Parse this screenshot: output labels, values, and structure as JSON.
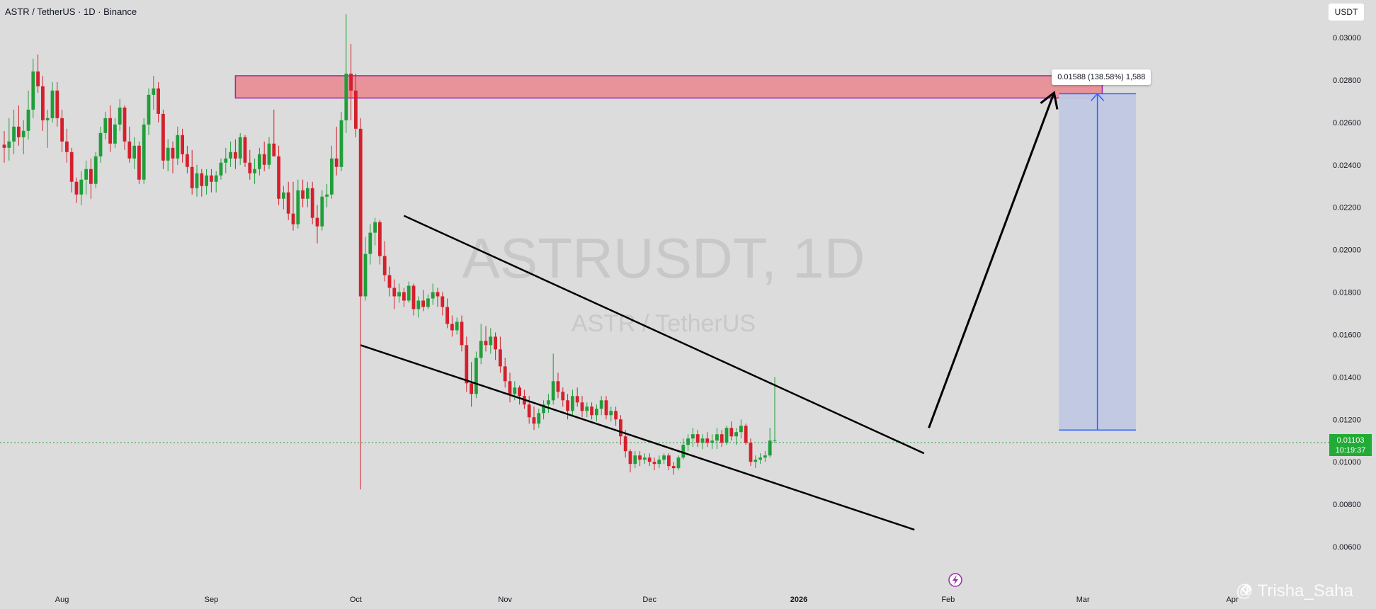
{
  "header": {
    "title": "ASTR / TetherUS · 1D · Binance",
    "unit": "USDT"
  },
  "watermark": {
    "symbol": "ASTRUSDT, 1D",
    "pair": "ASTR / TetherUS"
  },
  "author": "@ Trisha_Saha",
  "last_price": {
    "value": "0.01103",
    "countdown": "10:19:37"
  },
  "colors": {
    "up": "#1f9e3a",
    "down": "#d4202c",
    "zone_fill": "#e8939a",
    "zone_border": "#9c27b0",
    "measure_fill": "#c0c8e3",
    "measure_line": "#2962ff",
    "background": "#dcdcdc"
  },
  "icons": {
    "bolt": "lightning-icon",
    "author": "tradingview-logo-icon"
  },
  "chart_data": {
    "type": "candlestick",
    "title": "ASTR / TetherUS · 1D · Binance",
    "y_axis_unit": "USDT",
    "ylim": [
      0.0055,
      0.031
    ],
    "y_ticks": [
      "0.03000",
      "0.02800",
      "0.02600",
      "0.02400",
      "0.02200",
      "0.02000",
      "0.01800",
      "0.01600",
      "0.01400",
      "0.01200",
      "0.01000",
      "0.00800",
      "0.00600"
    ],
    "x_ticks": [
      {
        "label": "Aug",
        "date": "2025-08-01"
      },
      {
        "label": "Sep",
        "date": "2025-09-01"
      },
      {
        "label": "Oct",
        "date": "2025-10-01"
      },
      {
        "label": "Nov",
        "date": "2025-11-01"
      },
      {
        "label": "Dec",
        "date": "2025-12-01"
      },
      {
        "label": "2026",
        "date": "2026-01-01"
      },
      {
        "label": "Feb",
        "date": "2026-02-01"
      },
      {
        "label": "Mar",
        "date": "2026-03-01"
      },
      {
        "label": "Apr",
        "date": "2026-04-01"
      }
    ],
    "first_date": "2025-07-20",
    "last_price": 0.01103,
    "resistance_zone": {
      "from_date": "2025-09-06",
      "to_date": "2026-03-05",
      "low": 0.02715,
      "high": 0.0282
    },
    "falling_channel": {
      "upper": [
        {
          "date": "2025-10-11",
          "price": 0.0216
        },
        {
          "date": "2026-01-27",
          "price": 0.0104
        }
      ],
      "lower": [
        {
          "date": "2025-10-02",
          "price": 0.0155
        },
        {
          "date": "2026-01-25",
          "price": 0.0068
        }
      ]
    },
    "projection_arrow": {
      "from": {
        "date": "2026-01-28",
        "price": 0.0116
      },
      "to": {
        "date": "2026-02-23",
        "price": 0.0274
      }
    },
    "measure": {
      "from_date": "2026-02-24",
      "to_date": "2026-03-12",
      "low": 0.0115,
      "high": 0.02735,
      "label": "0.01588 (138.58%) 1,588"
    },
    "candles": [
      [
        0.02495,
        0.0256,
        0.0241,
        0.0248
      ],
      [
        0.0248,
        0.0262,
        0.0242,
        0.0251
      ],
      [
        0.0251,
        0.0266,
        0.0245,
        0.0258
      ],
      [
        0.0258,
        0.0268,
        0.0249,
        0.0253
      ],
      [
        0.0253,
        0.0261,
        0.0245,
        0.0256
      ],
      [
        0.0256,
        0.0275,
        0.0252,
        0.0266
      ],
      [
        0.0266,
        0.029,
        0.0262,
        0.0284
      ],
      [
        0.0284,
        0.0292,
        0.0274,
        0.0277
      ],
      [
        0.0277,
        0.0282,
        0.0256,
        0.0261
      ],
      [
        0.0261,
        0.0266,
        0.0248,
        0.0262
      ],
      [
        0.0262,
        0.0279,
        0.026,
        0.0275
      ],
      [
        0.0275,
        0.0279,
        0.0258,
        0.0262
      ],
      [
        0.0262,
        0.0266,
        0.0246,
        0.0251
      ],
      [
        0.0251,
        0.0257,
        0.0241,
        0.0246
      ],
      [
        0.0246,
        0.0248,
        0.0227,
        0.0232
      ],
      [
        0.0232,
        0.0234,
        0.0222,
        0.0226
      ],
      [
        0.0226,
        0.0237,
        0.0221,
        0.0233
      ],
      [
        0.0233,
        0.0242,
        0.0226,
        0.0238
      ],
      [
        0.0238,
        0.0243,
        0.0224,
        0.0231
      ],
      [
        0.0231,
        0.0246,
        0.0229,
        0.0244
      ],
      [
        0.0244,
        0.0258,
        0.0241,
        0.0255
      ],
      [
        0.0255,
        0.0265,
        0.0252,
        0.0262
      ],
      [
        0.0262,
        0.0268,
        0.0246,
        0.025
      ],
      [
        0.025,
        0.0262,
        0.0248,
        0.0259
      ],
      [
        0.0259,
        0.0271,
        0.0256,
        0.0267
      ],
      [
        0.0267,
        0.0268,
        0.0247,
        0.0251
      ],
      [
        0.0251,
        0.0258,
        0.0241,
        0.0243
      ],
      [
        0.0243,
        0.0253,
        0.0238,
        0.0249
      ],
      [
        0.0249,
        0.0251,
        0.0231,
        0.0233
      ],
      [
        0.0233,
        0.0262,
        0.0231,
        0.0259
      ],
      [
        0.0259,
        0.0276,
        0.0254,
        0.0273
      ],
      [
        0.0273,
        0.0282,
        0.0266,
        0.0276
      ],
      [
        0.0276,
        0.0279,
        0.026,
        0.0264
      ],
      [
        0.0264,
        0.0266,
        0.0238,
        0.0242
      ],
      [
        0.0242,
        0.0252,
        0.0237,
        0.0248
      ],
      [
        0.0248,
        0.0251,
        0.0236,
        0.0243
      ],
      [
        0.0243,
        0.0258,
        0.024,
        0.0254
      ],
      [
        0.0254,
        0.0257,
        0.0241,
        0.0245
      ],
      [
        0.0245,
        0.0249,
        0.0236,
        0.0239
      ],
      [
        0.0239,
        0.0247,
        0.0226,
        0.0229
      ],
      [
        0.0229,
        0.024,
        0.0225,
        0.0236
      ],
      [
        0.0236,
        0.0238,
        0.0225,
        0.023
      ],
      [
        0.023,
        0.0238,
        0.0226,
        0.0235
      ],
      [
        0.0235,
        0.0238,
        0.0227,
        0.0232
      ],
      [
        0.0232,
        0.0237,
        0.0227,
        0.0235
      ],
      [
        0.0235,
        0.0243,
        0.0233,
        0.0241
      ],
      [
        0.0241,
        0.0248,
        0.0236,
        0.0243
      ],
      [
        0.0243,
        0.0251,
        0.0239,
        0.0246
      ],
      [
        0.0246,
        0.0252,
        0.0238,
        0.0243
      ],
      [
        0.0243,
        0.0255,
        0.024,
        0.0253
      ],
      [
        0.0253,
        0.0254,
        0.0239,
        0.0241
      ],
      [
        0.0241,
        0.0247,
        0.0233,
        0.0236
      ],
      [
        0.0236,
        0.0243,
        0.0231,
        0.0238
      ],
      [
        0.0238,
        0.0248,
        0.0235,
        0.0245
      ],
      [
        0.0245,
        0.0251,
        0.0237,
        0.024
      ],
      [
        0.024,
        0.0253,
        0.0238,
        0.025
      ],
      [
        0.025,
        0.0266,
        0.0246,
        0.0244
      ],
      [
        0.0244,
        0.0249,
        0.0221,
        0.0224
      ],
      [
        0.0224,
        0.023,
        0.0219,
        0.0227
      ],
      [
        0.0227,
        0.0232,
        0.0214,
        0.0217
      ],
      [
        0.0217,
        0.0232,
        0.0209,
        0.0212
      ],
      [
        0.0212,
        0.0233,
        0.021,
        0.0228
      ],
      [
        0.0228,
        0.0233,
        0.022,
        0.0224
      ],
      [
        0.0224,
        0.0232,
        0.022,
        0.0229
      ],
      [
        0.0229,
        0.0232,
        0.0212,
        0.0215
      ],
      [
        0.0215,
        0.0221,
        0.0203,
        0.0211
      ],
      [
        0.0211,
        0.0228,
        0.0209,
        0.0225
      ],
      [
        0.0225,
        0.0231,
        0.022,
        0.0226
      ],
      [
        0.0226,
        0.0249,
        0.0224,
        0.0243
      ],
      [
        0.0243,
        0.0258,
        0.0235,
        0.0239
      ],
      [
        0.0239,
        0.0265,
        0.0237,
        0.0261
      ],
      [
        0.0261,
        0.0311,
        0.0255,
        0.0283
      ],
      [
        0.0283,
        0.0297,
        0.0261,
        0.0275
      ],
      [
        0.0275,
        0.0283,
        0.0253,
        0.0257
      ],
      [
        0.0257,
        0.0262,
        0.0087,
        0.0178
      ],
      [
        0.0178,
        0.0206,
        0.0176,
        0.0198
      ],
      [
        0.0198,
        0.0212,
        0.0193,
        0.0208
      ],
      [
        0.0208,
        0.0215,
        0.0202,
        0.0213
      ],
      [
        0.0213,
        0.0214,
        0.0193,
        0.0197
      ],
      [
        0.0197,
        0.0204,
        0.0185,
        0.0188
      ],
      [
        0.0188,
        0.0192,
        0.0178,
        0.0182
      ],
      [
        0.0182,
        0.0186,
        0.0172,
        0.0178
      ],
      [
        0.0178,
        0.0184,
        0.0175,
        0.018
      ],
      [
        0.018,
        0.0182,
        0.0173,
        0.0176
      ],
      [
        0.0176,
        0.0185,
        0.0175,
        0.0183
      ],
      [
        0.0183,
        0.0184,
        0.0169,
        0.0172
      ],
      [
        0.0172,
        0.0178,
        0.0168,
        0.0176
      ],
      [
        0.0176,
        0.0181,
        0.0171,
        0.0173
      ],
      [
        0.0173,
        0.0179,
        0.0172,
        0.0177
      ],
      [
        0.0177,
        0.0184,
        0.0174,
        0.018
      ],
      [
        0.018,
        0.0182,
        0.0173,
        0.0178
      ],
      [
        0.0178,
        0.018,
        0.0169,
        0.0173
      ],
      [
        0.0173,
        0.0177,
        0.0163,
        0.0165
      ],
      [
        0.0165,
        0.0169,
        0.0159,
        0.0162
      ],
      [
        0.0162,
        0.0168,
        0.016,
        0.0166
      ],
      [
        0.0166,
        0.0169,
        0.0152,
        0.0155
      ],
      [
        0.0155,
        0.0159,
        0.0133,
        0.0137
      ],
      [
        0.0137,
        0.0147,
        0.0126,
        0.0132
      ],
      [
        0.0132,
        0.0152,
        0.013,
        0.0149
      ],
      [
        0.0149,
        0.0165,
        0.0146,
        0.0157
      ],
      [
        0.0157,
        0.0164,
        0.0152,
        0.0155
      ],
      [
        0.0155,
        0.0163,
        0.0151,
        0.0159
      ],
      [
        0.0159,
        0.0161,
        0.0148,
        0.0153
      ],
      [
        0.0153,
        0.0159,
        0.0142,
        0.0145
      ],
      [
        0.0145,
        0.0149,
        0.0135,
        0.0138
      ],
      [
        0.0138,
        0.0142,
        0.0128,
        0.0132
      ],
      [
        0.0132,
        0.0138,
        0.0129,
        0.0135
      ],
      [
        0.0135,
        0.0136,
        0.0127,
        0.0131
      ],
      [
        0.0131,
        0.0134,
        0.0125,
        0.0127
      ],
      [
        0.0127,
        0.0131,
        0.0118,
        0.0121
      ],
      [
        0.0121,
        0.0126,
        0.0115,
        0.0118
      ],
      [
        0.0118,
        0.0125,
        0.0116,
        0.0123
      ],
      [
        0.0123,
        0.0129,
        0.012,
        0.0127
      ],
      [
        0.0127,
        0.0132,
        0.0123,
        0.0129
      ],
      [
        0.0129,
        0.0151,
        0.0127,
        0.0138
      ],
      [
        0.0138,
        0.0142,
        0.013,
        0.0133
      ],
      [
        0.0133,
        0.0135,
        0.0126,
        0.0129
      ],
      [
        0.0129,
        0.0132,
        0.012,
        0.0124
      ],
      [
        0.0124,
        0.0134,
        0.0122,
        0.0131
      ],
      [
        0.0131,
        0.0135,
        0.0126,
        0.0128
      ],
      [
        0.0128,
        0.0131,
        0.0121,
        0.0124
      ],
      [
        0.0124,
        0.0128,
        0.0121,
        0.0126
      ],
      [
        0.0126,
        0.0128,
        0.012,
        0.0122
      ],
      [
        0.0122,
        0.0127,
        0.0119,
        0.0125
      ],
      [
        0.0125,
        0.0131,
        0.0122,
        0.0129
      ],
      [
        0.0129,
        0.0131,
        0.012,
        0.0122
      ],
      [
        0.0122,
        0.0126,
        0.0119,
        0.0124
      ],
      [
        0.0124,
        0.0126,
        0.0117,
        0.012
      ],
      [
        0.012,
        0.0122,
        0.0108,
        0.0112
      ],
      [
        0.0112,
        0.0115,
        0.0102,
        0.0105
      ],
      [
        0.0105,
        0.0106,
        0.0095,
        0.0099
      ],
      [
        0.0099,
        0.0105,
        0.0097,
        0.0103
      ],
      [
        0.0103,
        0.0105,
        0.0098,
        0.0101
      ],
      [
        0.0101,
        0.0104,
        0.0099,
        0.0102
      ],
      [
        0.0102,
        0.0104,
        0.0098,
        0.01
      ],
      [
        0.01,
        0.0102,
        0.0096,
        0.0099
      ],
      [
        0.0099,
        0.0103,
        0.0097,
        0.0101
      ],
      [
        0.0101,
        0.0104,
        0.0099,
        0.0103
      ],
      [
        0.0103,
        0.0104,
        0.0096,
        0.0098
      ],
      [
        0.0098,
        0.01,
        0.0094,
        0.0097
      ],
      [
        0.0097,
        0.0103,
        0.0096,
        0.0102
      ],
      [
        0.0102,
        0.0111,
        0.0101,
        0.0108
      ],
      [
        0.0108,
        0.0113,
        0.0105,
        0.0111
      ],
      [
        0.0111,
        0.0116,
        0.0107,
        0.0113
      ],
      [
        0.0113,
        0.0115,
        0.0107,
        0.0109
      ],
      [
        0.0109,
        0.0113,
        0.0106,
        0.0111
      ],
      [
        0.0111,
        0.0114,
        0.0107,
        0.0109
      ],
      [
        0.0109,
        0.0113,
        0.0106,
        0.011
      ],
      [
        0.011,
        0.0116,
        0.0106,
        0.0113
      ],
      [
        0.0113,
        0.0115,
        0.0107,
        0.0109
      ],
      [
        0.0109,
        0.0117,
        0.0108,
        0.0116
      ],
      [
        0.0116,
        0.0119,
        0.011,
        0.0112
      ],
      [
        0.0112,
        0.0116,
        0.0108,
        0.0114
      ],
      [
        0.0114,
        0.012,
        0.0111,
        0.0117
      ],
      [
        0.0117,
        0.0118,
        0.0108,
        0.0109
      ],
      [
        0.0109,
        0.0111,
        0.0098,
        0.01
      ],
      [
        0.01,
        0.0103,
        0.0097,
        0.0101
      ],
      [
        0.0101,
        0.0104,
        0.0099,
        0.0102
      ],
      [
        0.0102,
        0.0105,
        0.01,
        0.0103
      ],
      [
        0.0103,
        0.0116,
        0.0102,
        0.011
      ],
      [
        0.011,
        0.014,
        0.0109,
        0.01103
      ]
    ]
  }
}
